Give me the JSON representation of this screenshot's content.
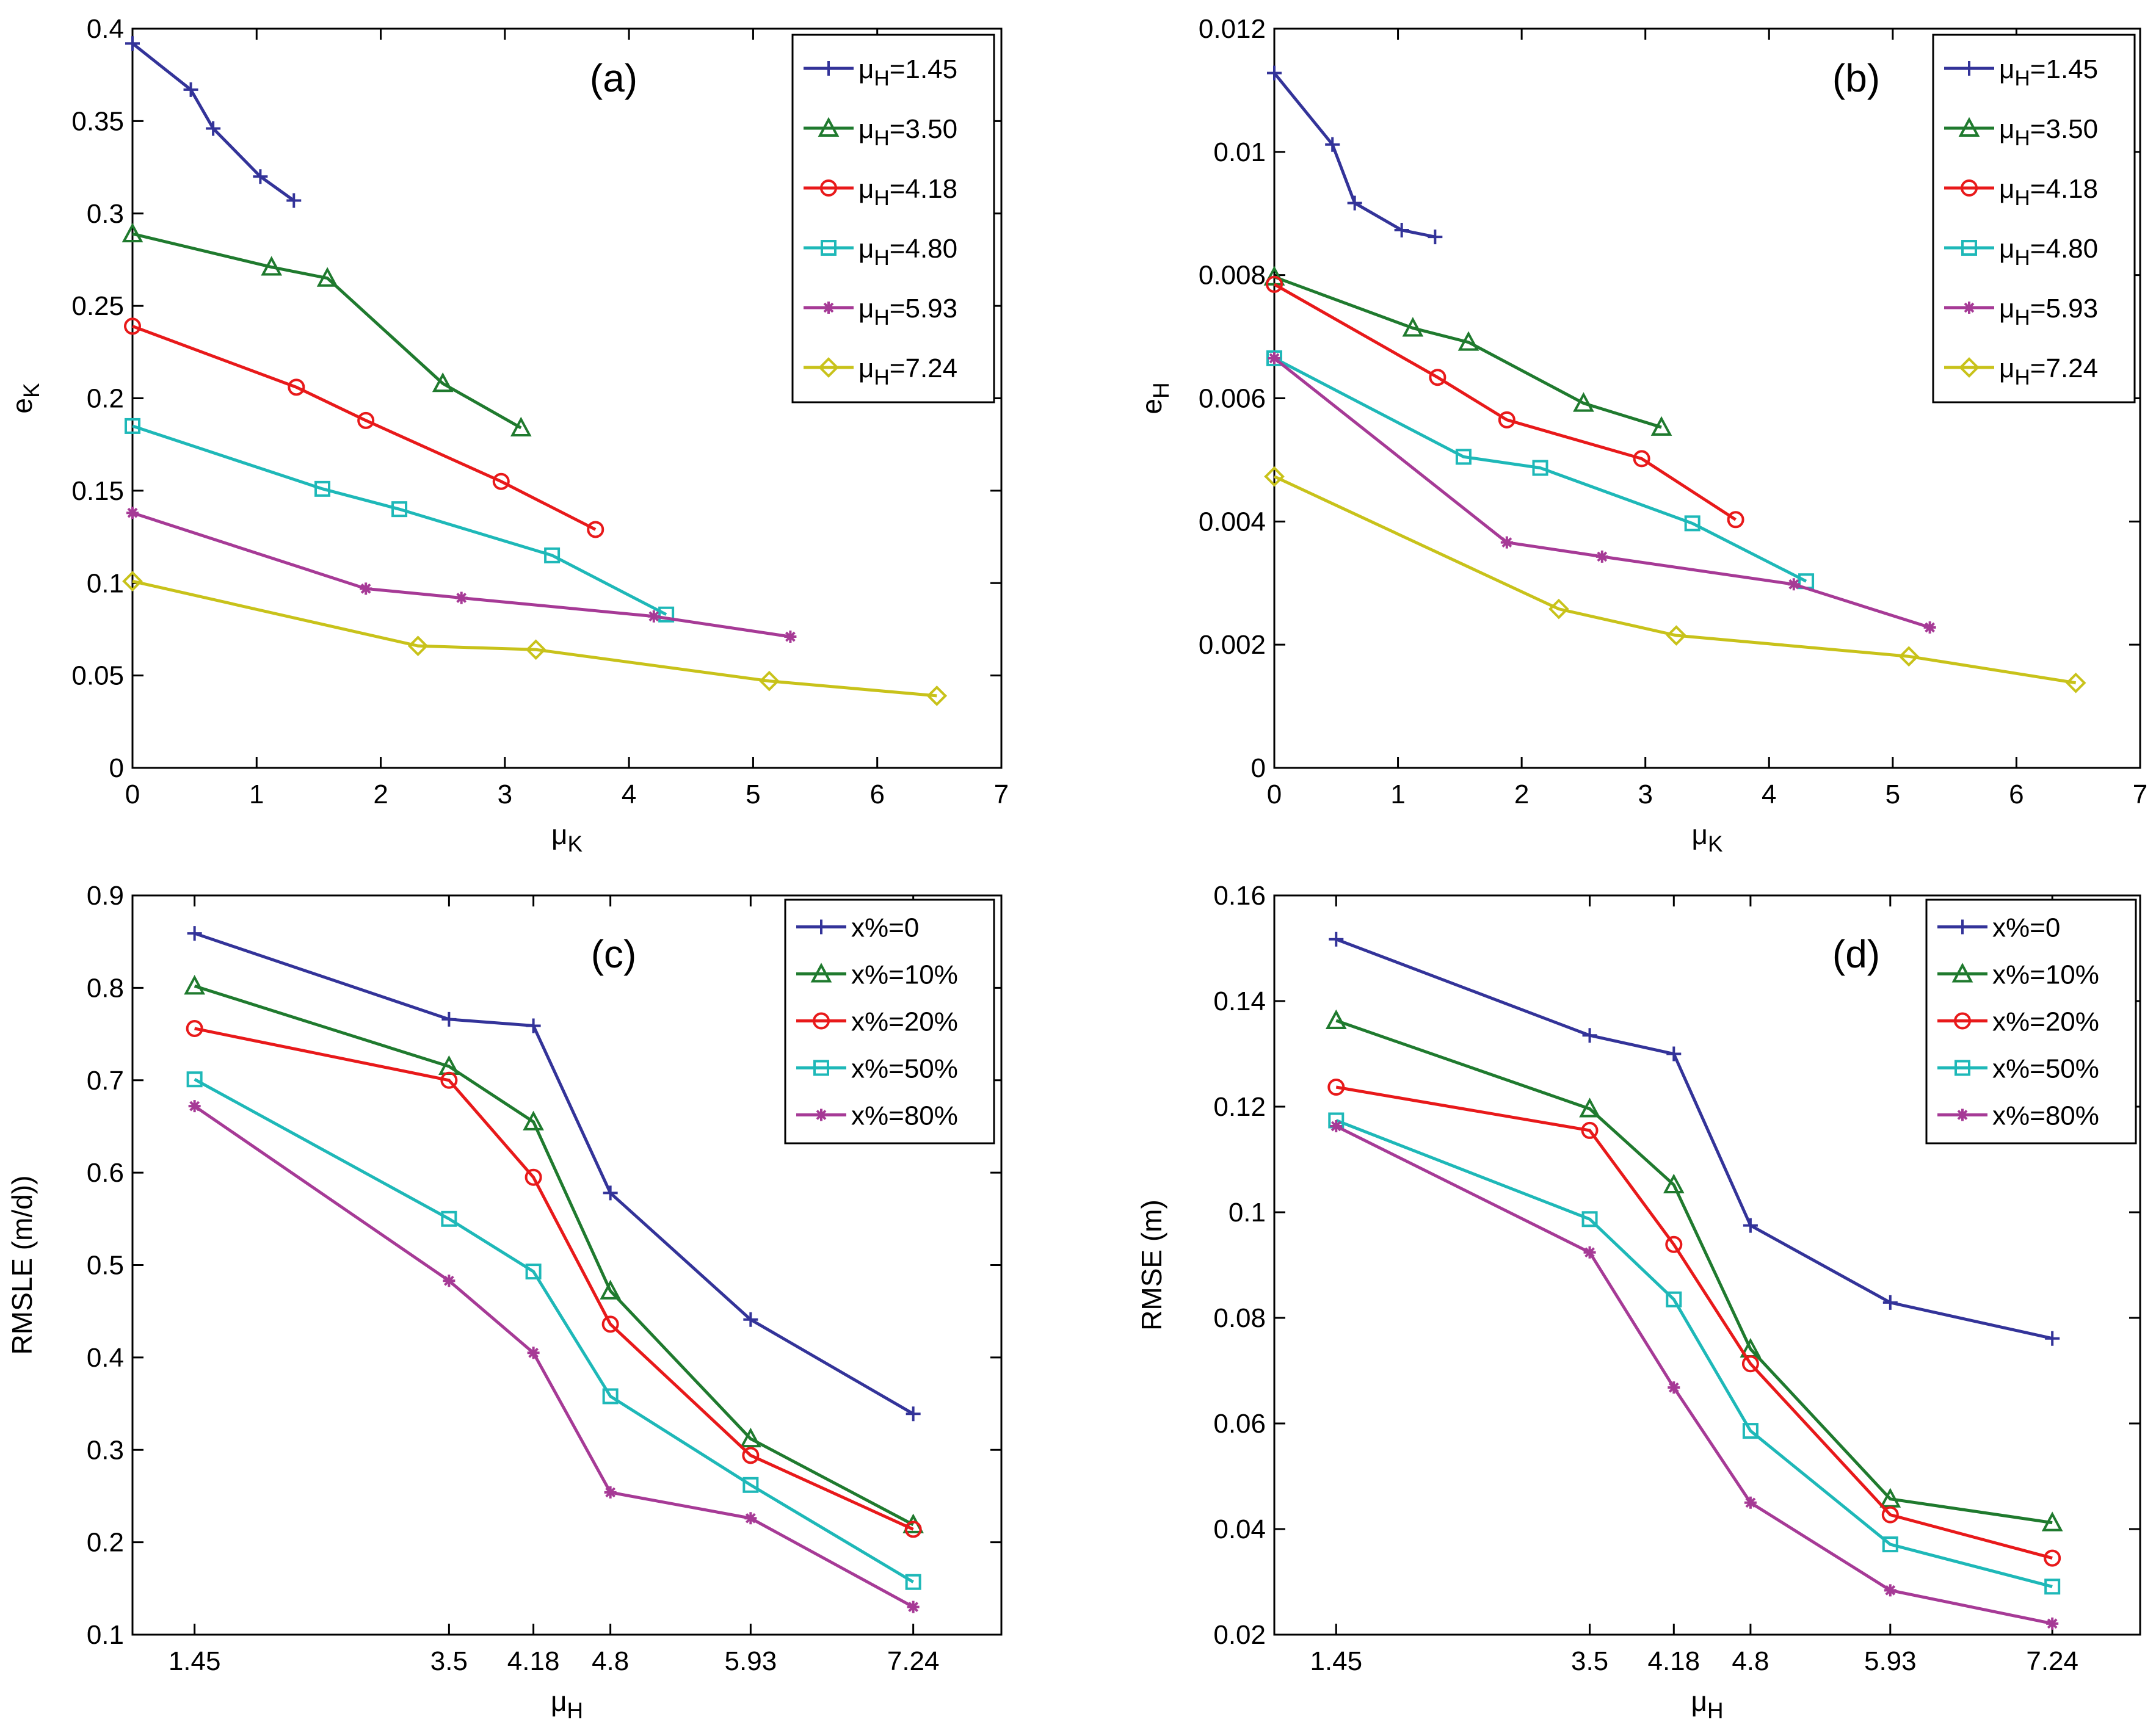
{
  "chart_data": [
    {
      "type": "line",
      "panel_label": "(a)",
      "xlabel": "μK",
      "ylabel": "eK",
      "xlim": [
        0,
        7
      ],
      "ylim": [
        0,
        0.4
      ],
      "xticks": [
        0,
        1,
        2,
        3,
        4,
        5,
        6,
        7
      ],
      "xtick_labels": [
        "0",
        "1",
        "2",
        "3",
        "4",
        "5",
        "6",
        "7"
      ],
      "yticks": [
        0,
        0.05,
        0.1,
        0.15,
        0.2,
        0.25,
        0.3,
        0.35,
        0.4
      ],
      "ytick_labels": [
        "0",
        "0.05",
        "0.1",
        "0.15",
        "0.2",
        "0.25",
        "0.3",
        "0.35",
        "0.4"
      ],
      "legend_position": "top-right",
      "series": [
        {
          "name": "μH=1.45",
          "color": "#333399",
          "marker": "plus",
          "x": [
            0,
            0.47,
            0.65,
            1.03,
            1.3
          ],
          "y": [
            0.392,
            0.367,
            0.346,
            0.32,
            0.307
          ]
        },
        {
          "name": "μH=3.50",
          "color": "#1f7a2e",
          "marker": "triangle",
          "x": [
            0,
            1.12,
            1.57,
            2.5,
            3.13
          ],
          "y": [
            0.289,
            0.271,
            0.265,
            0.208,
            0.184
          ]
        },
        {
          "name": "μH=4.18",
          "color": "#e8191a",
          "marker": "circle",
          "x": [
            0,
            1.32,
            1.88,
            2.97,
            3.73
          ],
          "y": [
            0.239,
            0.206,
            0.188,
            0.155,
            0.129
          ]
        },
        {
          "name": "μH=4.80",
          "color": "#1eb8b8",
          "marker": "square",
          "x": [
            0,
            1.53,
            2.15,
            3.38,
            4.3
          ],
          "y": [
            0.185,
            0.151,
            0.14,
            0.115,
            0.083
          ]
        },
        {
          "name": "μH=5.93",
          "color": "#a63a96",
          "marker": "star",
          "x": [
            0,
            1.88,
            2.65,
            4.2,
            5.3
          ],
          "y": [
            0.138,
            0.097,
            0.092,
            0.082,
            0.071
          ]
        },
        {
          "name": "μH=7.24",
          "color": "#c8c21a",
          "marker": "diamond",
          "x": [
            0,
            2.3,
            3.25,
            5.13,
            6.48
          ],
          "y": [
            0.101,
            0.066,
            0.064,
            0.047,
            0.039
          ]
        }
      ]
    },
    {
      "type": "line",
      "panel_label": "(b)",
      "xlabel": "μK",
      "ylabel": "eH",
      "xlim": [
        0,
        7
      ],
      "ylim": [
        0,
        0.012
      ],
      "xticks": [
        0,
        1,
        2,
        3,
        4,
        5,
        6,
        7
      ],
      "xtick_labels": [
        "0",
        "1",
        "2",
        "3",
        "4",
        "5",
        "6",
        "7"
      ],
      "yticks": [
        0,
        0.002,
        0.004,
        0.006,
        0.008,
        0.01,
        0.012
      ],
      "ytick_labels": [
        "0",
        "0.002",
        "0.004",
        "0.006",
        "0.008",
        "0.01",
        "0.012"
      ],
      "legend_position": "top-right",
      "series": [
        {
          "name": "μH=1.45",
          "color": "#333399",
          "marker": "plus",
          "x": [
            0,
            0.47,
            0.65,
            1.03,
            1.3
          ],
          "y": [
            0.01128,
            0.01012,
            0.00917,
            0.00873,
            0.00862
          ]
        },
        {
          "name": "μH=3.50",
          "color": "#1f7a2e",
          "marker": "triangle",
          "x": [
            0,
            1.12,
            1.57,
            2.5,
            3.13
          ],
          "y": [
            0.00797,
            0.00714,
            0.00691,
            0.00592,
            0.00553
          ]
        },
        {
          "name": "μH=4.18",
          "color": "#e8191a",
          "marker": "circle",
          "x": [
            0,
            1.32,
            1.88,
            2.97,
            3.73
          ],
          "y": [
            0.00785,
            0.00634,
            0.00565,
            0.00502,
            0.00403
          ]
        },
        {
          "name": "μH=4.80",
          "color": "#1eb8b8",
          "marker": "square",
          "x": [
            0,
            1.53,
            2.15,
            3.38,
            4.3
          ],
          "y": [
            0.00665,
            0.00505,
            0.00487,
            0.00397,
            0.00303
          ]
        },
        {
          "name": "μH=5.93",
          "color": "#a63a96",
          "marker": "star",
          "x": [
            0,
            1.88,
            2.65,
            4.2,
            5.3
          ],
          "y": [
            0.00665,
            0.00366,
            0.00343,
            0.00298,
            0.00228
          ]
        },
        {
          "name": "μH=7.24",
          "color": "#c8c21a",
          "marker": "diamond",
          "x": [
            0,
            2.3,
            3.25,
            5.13,
            6.48
          ],
          "y": [
            0.00473,
            0.00258,
            0.00215,
            0.00181,
            0.00138
          ]
        }
      ]
    },
    {
      "type": "line",
      "panel_label": "(c)",
      "xlabel": "μH",
      "ylabel": "RMSLE (m/d))",
      "xlim": [
        0.95,
        7.95
      ],
      "ylim": [
        0.1,
        0.9
      ],
      "xticks": [
        1.45,
        3.5,
        4.18,
        4.8,
        5.93,
        7.24
      ],
      "xtick_labels": [
        "1.45",
        "3.5",
        "4.18",
        "4.8",
        "5.93",
        "7.24"
      ],
      "yticks": [
        0.1,
        0.2,
        0.3,
        0.4,
        0.5,
        0.6,
        0.7,
        0.8,
        0.9
      ],
      "ytick_labels": [
        "0.1",
        "0.2",
        "0.3",
        "0.4",
        "0.5",
        "0.6",
        "0.7",
        "0.8",
        "0.9"
      ],
      "legend_position": "top-right",
      "series": [
        {
          "name": "x%=0",
          "color": "#333399",
          "marker": "plus",
          "x": [
            1.45,
            3.5,
            4.18,
            4.8,
            5.93,
            7.24
          ],
          "y": [
            0.859,
            0.766,
            0.759,
            0.578,
            0.441,
            0.339
          ]
        },
        {
          "name": "x%=10%",
          "color": "#1f7a2e",
          "marker": "triangle",
          "x": [
            1.45,
            3.5,
            4.18,
            4.8,
            5.93,
            7.24
          ],
          "y": [
            0.802,
            0.715,
            0.655,
            0.472,
            0.312,
            0.219
          ]
        },
        {
          "name": "x%=20%",
          "color": "#e8191a",
          "marker": "circle",
          "x": [
            1.45,
            3.5,
            4.18,
            4.8,
            5.93,
            7.24
          ],
          "y": [
            0.756,
            0.7,
            0.595,
            0.436,
            0.294,
            0.214
          ]
        },
        {
          "name": "x%=50%",
          "color": "#1eb8b8",
          "marker": "square",
          "x": [
            1.45,
            3.5,
            4.18,
            4.8,
            5.93,
            7.24
          ],
          "y": [
            0.701,
            0.55,
            0.493,
            0.358,
            0.262,
            0.157
          ]
        },
        {
          "name": "x%=80%",
          "color": "#a63a96",
          "marker": "star",
          "x": [
            1.45,
            3.5,
            4.18,
            4.8,
            5.93,
            7.24
          ],
          "y": [
            0.672,
            0.483,
            0.405,
            0.254,
            0.226,
            0.13
          ]
        }
      ]
    },
    {
      "type": "line",
      "panel_label": "(d)",
      "xlabel": "μH",
      "ylabel": "RMSE (m)",
      "xlim": [
        0.95,
        7.95
      ],
      "ylim": [
        0.02,
        0.16
      ],
      "xticks": [
        1.45,
        3.5,
        4.18,
        4.8,
        5.93,
        7.24
      ],
      "xtick_labels": [
        "1.45",
        "3.5",
        "4.18",
        "4.8",
        "5.93",
        "7.24"
      ],
      "yticks": [
        0.02,
        0.04,
        0.06,
        0.08,
        0.1,
        0.12,
        0.14,
        0.16
      ],
      "ytick_labels": [
        "0.02",
        "0.04",
        "0.06",
        "0.08",
        "0.1",
        "0.12",
        "0.14",
        "0.16"
      ],
      "legend_position": "top-right",
      "series": [
        {
          "name": "x%=0",
          "color": "#333399",
          "marker": "plus",
          "x": [
            1.45,
            3.5,
            4.18,
            4.8,
            5.93,
            7.24
          ],
          "y": [
            0.1517,
            0.1335,
            0.13,
            0.0975,
            0.0829,
            0.0761
          ]
        },
        {
          "name": "x%=10%",
          "color": "#1f7a2e",
          "marker": "triangle",
          "x": [
            1.45,
            3.5,
            4.18,
            4.8,
            5.93,
            7.24
          ],
          "y": [
            0.1363,
            0.1196,
            0.1052,
            0.0741,
            0.0457,
            0.0412
          ]
        },
        {
          "name": "x%=20%",
          "color": "#e8191a",
          "marker": "circle",
          "x": [
            1.45,
            3.5,
            4.18,
            4.8,
            5.93,
            7.24
          ],
          "y": [
            0.1237,
            0.1155,
            0.0939,
            0.0713,
            0.0427,
            0.0345
          ]
        },
        {
          "name": "x%=50%",
          "color": "#1eb8b8",
          "marker": "square",
          "x": [
            1.45,
            3.5,
            4.18,
            4.8,
            5.93,
            7.24
          ],
          "y": [
            0.1174,
            0.0987,
            0.0835,
            0.0586,
            0.0371,
            0.0291
          ]
        },
        {
          "name": "x%=80%",
          "color": "#a63a96",
          "marker": "star",
          "x": [
            1.45,
            3.5,
            4.18,
            4.8,
            5.93,
            7.24
          ],
          "y": [
            0.1163,
            0.0924,
            0.0668,
            0.045,
            0.0284,
            0.0221
          ]
        }
      ]
    }
  ]
}
